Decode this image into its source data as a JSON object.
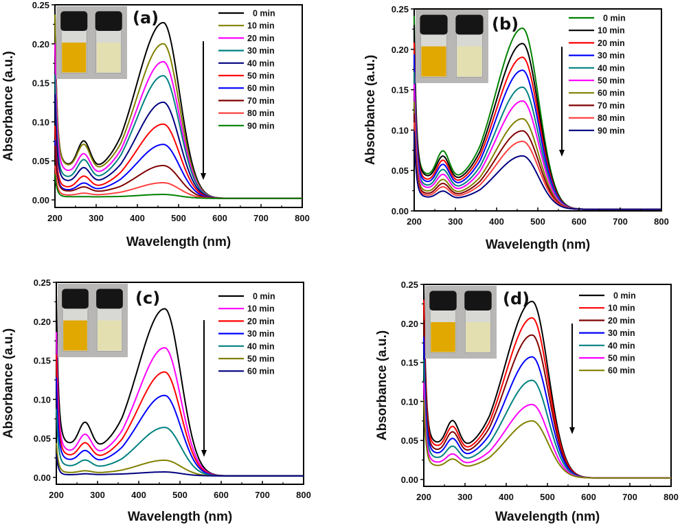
{
  "chart_data": [
    {
      "panel": "(a)",
      "type": "line",
      "xlabel": "Wavelength (nm)",
      "ylabel": "Absorbance (a.u.)",
      "xlim": [
        200,
        800
      ],
      "ylim": [
        0,
        0.25
      ],
      "xticks": [
        "200",
        "300",
        "400",
        "500",
        "600",
        "700",
        "800"
      ],
      "yticks": [
        "0.00",
        "0.05",
        "0.10",
        "0.15",
        "0.20",
        "0.25"
      ],
      "legend_position": "top-right",
      "inset": "photo of two vials: yellow solution (left) and nearly colorless solution (right)",
      "arrow": "downward arrow near 560 nm indicating decreasing absorbance with time",
      "series": [
        {
          "name": "0 min",
          "color": "#000000",
          "peak_nm": 463,
          "peak_abs": 0.225,
          "band270": 0.089,
          "min240": 0.06,
          "min338": 0.024
        },
        {
          "name": "10 min",
          "color": "#808000",
          "peak_nm": 463,
          "peak_abs": 0.198,
          "band270": 0.085,
          "min240": 0.059,
          "min338": 0.022
        },
        {
          "name": "20 min",
          "color": "#ff00ff",
          "peak_nm": 463,
          "peak_abs": 0.175,
          "band270": 0.07,
          "min240": 0.049,
          "min338": 0.019
        },
        {
          "name": "30 min",
          "color": "#008080",
          "peak_nm": 463,
          "peak_abs": 0.157,
          "band270": 0.059,
          "min240": 0.038,
          "min338": 0.016
        },
        {
          "name": "40 min",
          "color": "#000080",
          "peak_nm": 463,
          "peak_abs": 0.123,
          "band270": 0.047,
          "min240": 0.031,
          "min338": 0.014
        },
        {
          "name": "50 min",
          "color": "#ff0000",
          "peak_nm": 463,
          "peak_abs": 0.095,
          "band270": 0.033,
          "min240": 0.02,
          "min338": 0.01
        },
        {
          "name": "60 min",
          "color": "#0000ff",
          "peak_nm": 463,
          "peak_abs": 0.069,
          "band270": 0.023,
          "min240": 0.015,
          "min338": 0.008
        },
        {
          "name": "70 min",
          "color": "#800000",
          "peak_nm": 463,
          "peak_abs": 0.042,
          "band270": 0.018,
          "min240": 0.013,
          "min338": 0.006
        },
        {
          "name": "80 min",
          "color": "#ff4040",
          "peak_nm": 463,
          "peak_abs": 0.02,
          "band270": 0.008,
          "min240": 0.006,
          "min338": 0.004
        },
        {
          "name": "90 min",
          "color": "#008000",
          "peak_nm": 463,
          "peak_abs": 0.005,
          "band270": 0.003,
          "min240": 0.003,
          "min338": 0.002
        }
      ]
    },
    {
      "panel": "(b)",
      "type": "line",
      "xlabel": "Wavelength (nm)",
      "ylabel": "Absorbance (a.u.)",
      "xlim": [
        200,
        800
      ],
      "ylim": [
        0,
        0.25
      ],
      "xticks": [
        "200",
        "300",
        "400",
        "500",
        "600",
        "700",
        "800"
      ],
      "yticks": [
        "0.00",
        "0.05",
        "0.10",
        "0.15",
        "0.20",
        "0.25"
      ],
      "legend_position": "top-right",
      "inset": "photo of two vials: yellow solution (left) and pale yellow solution (right)",
      "arrow": "downward arrow near 560 nm indicating decreasing absorbance with time",
      "series": [
        {
          "name": "0 min",
          "color": "#008000",
          "peak_nm": 463,
          "peak_abs": 0.224,
          "band270": 0.088,
          "min240": 0.06,
          "min338": 0.022
        },
        {
          "name": "10 min",
          "color": "#000000",
          "peak_nm": 463,
          "peak_abs": 0.205,
          "band270": 0.081,
          "min240": 0.057,
          "min338": 0.02
        },
        {
          "name": "20 min",
          "color": "#ff0000",
          "peak_nm": 463,
          "peak_abs": 0.188,
          "band270": 0.074,
          "min240": 0.051,
          "min338": 0.019
        },
        {
          "name": "30 min",
          "color": "#0000ff",
          "peak_nm": 463,
          "peak_abs": 0.172,
          "band270": 0.068,
          "min240": 0.047,
          "min338": 0.017
        },
        {
          "name": "40 min",
          "color": "#008080",
          "peak_nm": 463,
          "peak_abs": 0.151,
          "band270": 0.06,
          "min240": 0.041,
          "min338": 0.015
        },
        {
          "name": "50 min",
          "color": "#ff00ff",
          "peak_nm": 463,
          "peak_abs": 0.134,
          "band270": 0.053,
          "min240": 0.037,
          "min338": 0.013
        },
        {
          "name": "60 min",
          "color": "#808000",
          "peak_nm": 463,
          "peak_abs": 0.112,
          "band270": 0.045,
          "min240": 0.031,
          "min338": 0.012
        },
        {
          "name": "70 min",
          "color": "#800000",
          "peak_nm": 463,
          "peak_abs": 0.097,
          "band270": 0.039,
          "min240": 0.027,
          "min338": 0.011
        },
        {
          "name": "80 min",
          "color": "#ff4040",
          "peak_nm": 463,
          "peak_abs": 0.084,
          "band270": 0.034,
          "min240": 0.024,
          "min338": 0.01
        },
        {
          "name": "90 min",
          "color": "#000080",
          "peak_nm": 463,
          "peak_abs": 0.066,
          "band270": 0.028,
          "min240": 0.021,
          "min338": 0.009
        }
      ]
    },
    {
      "panel": "(c)",
      "type": "line",
      "xlabel": "Wavelength (nm)",
      "ylabel": "Absorbance (a.u.)",
      "xlim": [
        200,
        800
      ],
      "ylim": [
        0,
        0.25
      ],
      "xticks": [
        "200",
        "300",
        "400",
        "500",
        "600",
        "700",
        "800"
      ],
      "yticks": [
        "0.00",
        "0.05",
        "0.10",
        "0.15",
        "0.20",
        "0.25"
      ],
      "legend_position": "top-right",
      "inset": "photo of two vials: yellow solution (left) and nearly colorless solution (right)",
      "arrow": "downward arrow near 560 nm indicating decreasing absorbance with time",
      "series": [
        {
          "name": "0 min",
          "color": "#000000",
          "peak_nm": 463,
          "peak_abs": 0.214,
          "band270": 0.084,
          "min240": 0.058,
          "min338": 0.021
        },
        {
          "name": "10 min",
          "color": "#ff00ff",
          "peak_nm": 463,
          "peak_abs": 0.164,
          "band270": 0.065,
          "min240": 0.045,
          "min338": 0.018
        },
        {
          "name": "20 min",
          "color": "#ff0000",
          "peak_nm": 463,
          "peak_abs": 0.133,
          "band270": 0.052,
          "min240": 0.037,
          "min338": 0.015
        },
        {
          "name": "30 min",
          "color": "#0000ff",
          "peak_nm": 463,
          "peak_abs": 0.103,
          "band270": 0.04,
          "min240": 0.029,
          "min338": 0.012
        },
        {
          "name": "40 min",
          "color": "#008080",
          "peak_nm": 463,
          "peak_abs": 0.062,
          "band270": 0.025,
          "min240": 0.018,
          "min338": 0.007
        },
        {
          "name": "50 min",
          "color": "#808000",
          "peak_nm": 463,
          "peak_abs": 0.02,
          "band270": 0.008,
          "min240": 0.006,
          "min338": 0.003
        },
        {
          "name": "60 min",
          "color": "#000080",
          "peak_nm": 463,
          "peak_abs": 0.005,
          "band270": 0.003,
          "min240": 0.002,
          "min338": 0.002
        }
      ]
    },
    {
      "panel": "(d)",
      "type": "line",
      "xlabel": "Wavelength (nm)",
      "ylabel": "Absorbance (a.u.)",
      "xlim": [
        200,
        800
      ],
      "ylim": [
        0,
        0.25
      ],
      "xticks": [
        "200",
        "300",
        "400",
        "500",
        "600",
        "700",
        "800"
      ],
      "yticks": [
        "0.00",
        "0.05",
        "0.10",
        "0.15",
        "0.20",
        "0.25"
      ],
      "legend_position": "top-right",
      "inset": "photo of two vials: yellow solution (left) and pale yellow solution (right)",
      "arrow": "downward arrow near 560 nm indicating decreasing absorbance with time",
      "series": [
        {
          "name": "0 min",
          "color": "#000000",
          "peak_nm": 463,
          "peak_abs": 0.226,
          "band270": 0.09,
          "min240": 0.063,
          "min338": 0.024
        },
        {
          "name": "10 min",
          "color": "#ff0000",
          "peak_nm": 463,
          "peak_abs": 0.205,
          "band270": 0.081,
          "min240": 0.057,
          "min338": 0.021
        },
        {
          "name": "20 min",
          "color": "#800000",
          "peak_nm": 463,
          "peak_abs": 0.183,
          "band270": 0.072,
          "min240": 0.05,
          "min338": 0.02
        },
        {
          "name": "30 min",
          "color": "#0000ff",
          "peak_nm": 463,
          "peak_abs": 0.155,
          "band270": 0.062,
          "min240": 0.044,
          "min338": 0.018
        },
        {
          "name": "40 min",
          "color": "#008080",
          "peak_nm": 463,
          "peak_abs": 0.125,
          "band270": 0.05,
          "min240": 0.036,
          "min338": 0.015
        },
        {
          "name": "50 min",
          "color": "#ff00ff",
          "peak_nm": 463,
          "peak_abs": 0.094,
          "band270": 0.038,
          "min240": 0.028,
          "min338": 0.012
        },
        {
          "name": "60 min",
          "color": "#808000",
          "peak_nm": 463,
          "peak_abs": 0.073,
          "band270": 0.03,
          "min240": 0.022,
          "min338": 0.009
        }
      ]
    }
  ]
}
